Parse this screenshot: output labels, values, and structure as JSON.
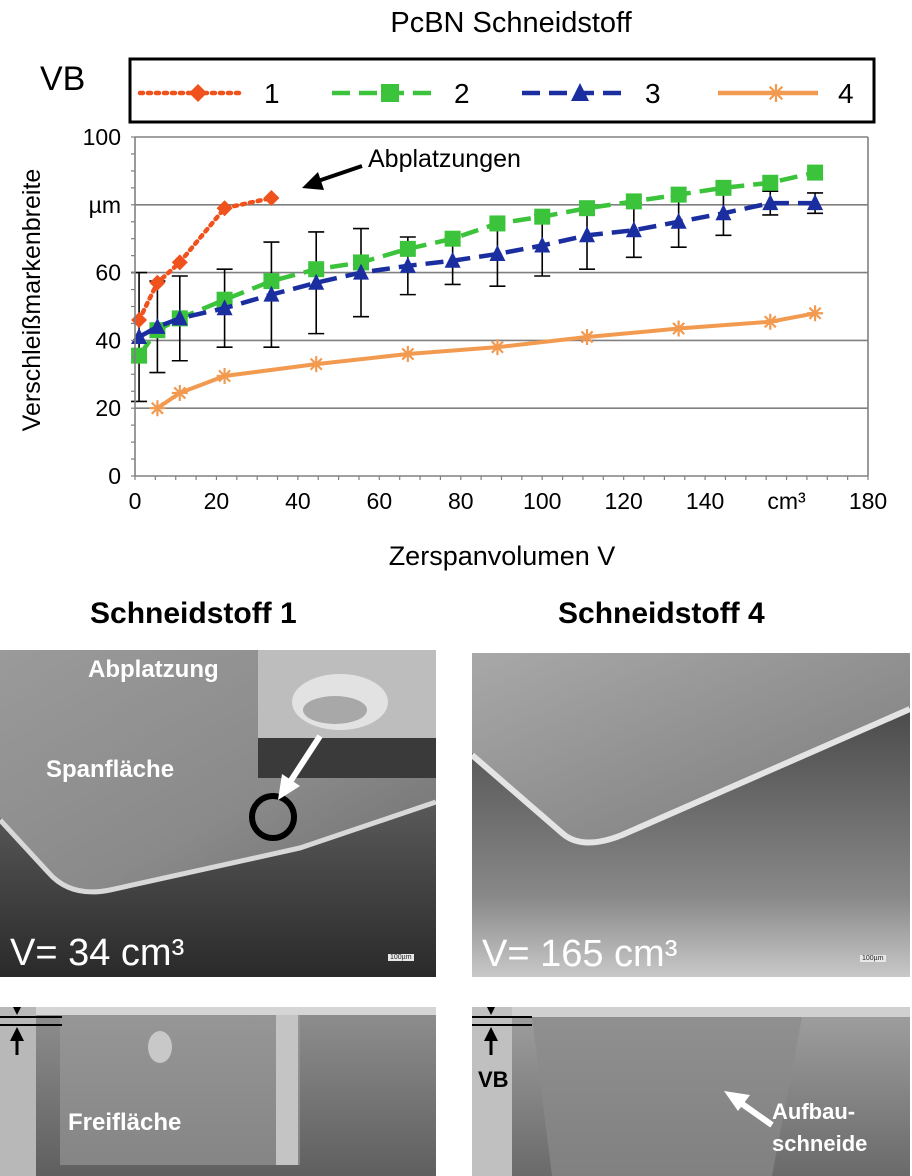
{
  "chart_data": {
    "type": "line",
    "title": "PcBN Schneidstoff",
    "xlabel": "Zerspanvolumen  V",
    "ylabel": "Verschleißmarkenbreite",
    "ylabel_symbol": "VB",
    "y_unit": "µm",
    "x_unit": "cm³",
    "xlim": [
      0,
      180
    ],
    "ylim": [
      0,
      100
    ],
    "x_ticks": [
      "0",
      "20",
      "40",
      "60",
      "80",
      "100",
      "120",
      "140",
      "cm³",
      "180"
    ],
    "y_ticks": [
      "0",
      "20",
      "40",
      "60",
      "µm",
      "100"
    ],
    "grid": "horizontal",
    "legend_position": "top",
    "annotation": "Abplatzungen",
    "series": [
      {
        "name": "1",
        "color": "#f0521e",
        "marker": "diamond",
        "line": "dotted",
        "x": [
          1,
          5.5,
          11,
          22,
          33.5
        ],
        "y": [
          46,
          57,
          63,
          79,
          82
        ],
        "err": [
          0,
          0,
          0,
          0,
          0
        ]
      },
      {
        "name": "2",
        "color": "#3cc33c",
        "marker": "square",
        "line": "dashed",
        "x": [
          1,
          5.5,
          11,
          22,
          33.5,
          44.5,
          55.5,
          67,
          78,
          89,
          100,
          111,
          122.5,
          133.5,
          144.5,
          156,
          167
        ],
        "y": [
          35.5,
          43,
          46.5,
          52,
          57.5,
          61,
          63,
          67,
          70,
          74.5,
          76.5,
          79,
          81,
          83,
          85,
          86.5,
          89.5
        ],
        "err": [
          0,
          0,
          0,
          0,
          0,
          0,
          0,
          0,
          0,
          0,
          0,
          0,
          0,
          0,
          0,
          0,
          0
        ]
      },
      {
        "name": "3",
        "color": "#1a2ea0",
        "marker": "triangle",
        "line": "dashed",
        "x": [
          1,
          5.5,
          11,
          22,
          33.5,
          44.5,
          55.5,
          67,
          78,
          89,
          100,
          111,
          122.5,
          133.5,
          144.5,
          156,
          167
        ],
        "y": [
          41,
          44,
          46.5,
          49.5,
          53.5,
          57,
          60,
          62,
          63.5,
          65.5,
          68,
          71,
          72.5,
          75,
          77.5,
          80.5,
          80.5
        ],
        "err": [
          19,
          13.5,
          12.5,
          11.5,
          15.5,
          15,
          13,
          8.5,
          7,
          9.5,
          9,
          10,
          8,
          7.5,
          6.5,
          3.5,
          3
        ]
      },
      {
        "name": "4",
        "color": "#f29a50",
        "marker": "star",
        "line": "solid",
        "x": [
          5.5,
          11,
          22,
          44.5,
          67,
          89,
          111,
          133.5,
          156,
          167
        ],
        "y": [
          20,
          24.5,
          29.5,
          33,
          36,
          38,
          41,
          43.5,
          45.5,
          48
        ],
        "err": [
          0,
          0,
          0,
          0,
          0,
          0,
          0,
          0,
          0,
          0
        ]
      }
    ]
  },
  "figure": {
    "panel1_title": "Schneidstoff 1",
    "panel2_title": "Schneidstoff 4",
    "panel1_volume": "V= 34 cm³",
    "panel2_volume": "V= 165 cm³",
    "label_abplatzung": "Abplatzung",
    "label_spanflaeche": "Spanfläche",
    "label_freiflaeche": "Freifläche",
    "label_vb": "VB",
    "label_aufbau_1": "Aufbau-",
    "label_aufbau_2": "schneide",
    "scale_text": "100µm"
  }
}
